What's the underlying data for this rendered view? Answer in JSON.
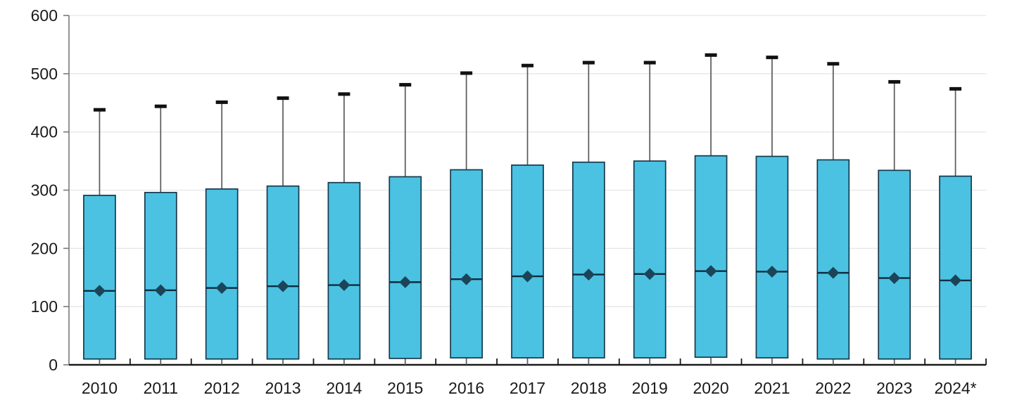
{
  "chart_data": {
    "type": "boxplot",
    "title": "",
    "xlabel": "",
    "ylabel": "",
    "ylim": [
      0,
      600
    ],
    "yticks": [
      0,
      100,
      200,
      300,
      400,
      500,
      600
    ],
    "grid": true,
    "legend": "none",
    "marker": "diamond-at-median",
    "categories": [
      "2010",
      "2011",
      "2012",
      "2013",
      "2014",
      "2015",
      "2016",
      "2017",
      "2018",
      "2019",
      "2020",
      "2021",
      "2022",
      "2023",
      "2024*"
    ],
    "series": [
      {
        "category": "2010",
        "min": 0,
        "q1": 10,
        "median": 127,
        "q3": 291,
        "max": 438
      },
      {
        "category": "2011",
        "min": 0,
        "q1": 10,
        "median": 128,
        "q3": 296,
        "max": 444
      },
      {
        "category": "2012",
        "min": 0,
        "q1": 10,
        "median": 132,
        "q3": 302,
        "max": 451
      },
      {
        "category": "2013",
        "min": 0,
        "q1": 10,
        "median": 135,
        "q3": 307,
        "max": 458
      },
      {
        "category": "2014",
        "min": 0,
        "q1": 10,
        "median": 137,
        "q3": 313,
        "max": 465
      },
      {
        "category": "2015",
        "min": 0,
        "q1": 11,
        "median": 142,
        "q3": 323,
        "max": 481
      },
      {
        "category": "2016",
        "min": 0,
        "q1": 12,
        "median": 147,
        "q3": 335,
        "max": 501
      },
      {
        "category": "2017",
        "min": 0,
        "q1": 12,
        "median": 152,
        "q3": 343,
        "max": 514
      },
      {
        "category": "2018",
        "min": 0,
        "q1": 12,
        "median": 155,
        "q3": 348,
        "max": 519
      },
      {
        "category": "2019",
        "min": 0,
        "q1": 12,
        "median": 156,
        "q3": 350,
        "max": 519
      },
      {
        "category": "2020",
        "min": 0,
        "q1": 13,
        "median": 161,
        "q3": 359,
        "max": 532
      },
      {
        "category": "2021",
        "min": 0,
        "q1": 12,
        "median": 160,
        "q3": 358,
        "max": 528
      },
      {
        "category": "2022",
        "min": 0,
        "q1": 10,
        "median": 158,
        "q3": 352,
        "max": 517
      },
      {
        "category": "2023",
        "min": 0,
        "q1": 10,
        "median": 149,
        "q3": 334,
        "max": 486
      },
      {
        "category": "2024*",
        "min": 0,
        "q1": 10,
        "median": 145,
        "q3": 324,
        "max": 474
      }
    ],
    "colors": {
      "box_fill": "#4BC2E2",
      "box_stroke": "#16384C",
      "median_line": "#0F2B3C",
      "median_diamond": "#1B4459",
      "whisker_line": "#5A5A5A",
      "whisker_cap": "#111111",
      "gridline": "#E6E6E6",
      "y_axis": "#7A7A7A",
      "x_axis": "#1A1A1A",
      "tick_label": "#1A1A1A"
    }
  }
}
